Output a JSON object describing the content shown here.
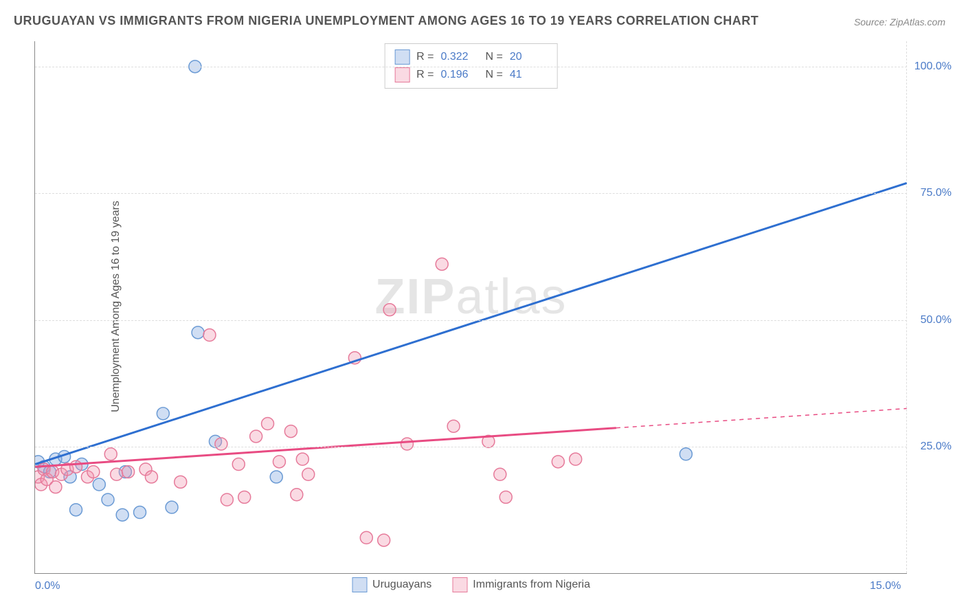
{
  "title": "URUGUAYAN VS IMMIGRANTS FROM NIGERIA UNEMPLOYMENT AMONG AGES 16 TO 19 YEARS CORRELATION CHART",
  "source": "Source: ZipAtlas.com",
  "y_axis_title": "Unemployment Among Ages 16 to 19 years",
  "watermark_a": "ZIP",
  "watermark_b": "atlas",
  "chart": {
    "type": "scatter",
    "xlim": [
      0,
      15
    ],
    "ylim": [
      0,
      105
    ],
    "x_ticks": [
      {
        "val": 0.0,
        "label": "0.0%"
      },
      {
        "val": 15.0,
        "label": "15.0%"
      }
    ],
    "y_ticks": [
      {
        "val": 25.0,
        "label": "25.0%"
      },
      {
        "val": 50.0,
        "label": "50.0%"
      },
      {
        "val": 75.0,
        "label": "75.0%"
      },
      {
        "val": 100.0,
        "label": "100.0%"
      }
    ],
    "grid_color": "#dddddd",
    "background_color": "#ffffff",
    "marker_radius": 9,
    "marker_stroke_width": 1.5,
    "line_width": 3,
    "series": [
      {
        "name": "Uruguayans",
        "color_fill": "rgba(120,160,220,0.35)",
        "color_stroke": "#6a9ad4",
        "line_color": "#2e6fd0",
        "R": "0.322",
        "N": "20",
        "trend": {
          "x1": 0.0,
          "y1": 21.5,
          "x2": 15.0,
          "y2": 77.0,
          "solid_until_x": 15.0
        },
        "points": [
          {
            "x": 0.05,
            "y": 22.0
          },
          {
            "x": 0.15,
            "y": 21.0
          },
          {
            "x": 0.25,
            "y": 20.0
          },
          {
            "x": 0.35,
            "y": 22.5
          },
          {
            "x": 0.5,
            "y": 23.0
          },
          {
            "x": 0.6,
            "y": 19.0
          },
          {
            "x": 0.7,
            "y": 12.5
          },
          {
            "x": 0.8,
            "y": 21.5
          },
          {
            "x": 1.1,
            "y": 17.5
          },
          {
            "x": 1.25,
            "y": 14.5
          },
          {
            "x": 1.5,
            "y": 11.5
          },
          {
            "x": 1.55,
            "y": 20.0
          },
          {
            "x": 1.8,
            "y": 12.0
          },
          {
            "x": 2.2,
            "y": 31.5
          },
          {
            "x": 2.35,
            "y": 13.0
          },
          {
            "x": 2.75,
            "y": 100.0
          },
          {
            "x": 2.8,
            "y": 47.5
          },
          {
            "x": 3.1,
            "y": 26.0
          },
          {
            "x": 4.15,
            "y": 19.0
          },
          {
            "x": 11.2,
            "y": 23.5
          }
        ]
      },
      {
        "name": "Immigrants from Nigeria",
        "color_fill": "rgba(240,150,175,0.35)",
        "color_stroke": "#e67a9a",
        "line_color": "#e84b82",
        "R": "0.196",
        "N": "41",
        "trend": {
          "x1": 0.0,
          "y1": 21.0,
          "x2": 15.0,
          "y2": 32.5,
          "solid_until_x": 10.0
        },
        "points": [
          {
            "x": 0.05,
            "y": 19.0
          },
          {
            "x": 0.1,
            "y": 17.5
          },
          {
            "x": 0.15,
            "y": 20.5
          },
          {
            "x": 0.2,
            "y": 18.5
          },
          {
            "x": 0.3,
            "y": 20.0
          },
          {
            "x": 0.35,
            "y": 17.0
          },
          {
            "x": 0.45,
            "y": 19.5
          },
          {
            "x": 0.55,
            "y": 20.5
          },
          {
            "x": 0.7,
            "y": 21.0
          },
          {
            "x": 0.9,
            "y": 19.0
          },
          {
            "x": 1.0,
            "y": 20.0
          },
          {
            "x": 1.3,
            "y": 23.5
          },
          {
            "x": 1.4,
            "y": 19.5
          },
          {
            "x": 1.6,
            "y": 20.0
          },
          {
            "x": 1.9,
            "y": 20.5
          },
          {
            "x": 2.0,
            "y": 19.0
          },
          {
            "x": 2.5,
            "y": 18.0
          },
          {
            "x": 3.0,
            "y": 47.0
          },
          {
            "x": 3.2,
            "y": 25.5
          },
          {
            "x": 3.3,
            "y": 14.5
          },
          {
            "x": 3.5,
            "y": 21.5
          },
          {
            "x": 3.6,
            "y": 15.0
          },
          {
            "x": 3.8,
            "y": 27.0
          },
          {
            "x": 4.0,
            "y": 29.5
          },
          {
            "x": 4.2,
            "y": 22.0
          },
          {
            "x": 4.4,
            "y": 28.0
          },
          {
            "x": 4.5,
            "y": 15.5
          },
          {
            "x": 4.6,
            "y": 22.5
          },
          {
            "x": 4.7,
            "y": 19.5
          },
          {
            "x": 5.5,
            "y": 42.5
          },
          {
            "x": 5.7,
            "y": 7.0
          },
          {
            "x": 6.0,
            "y": 6.5
          },
          {
            "x": 6.1,
            "y": 52.0
          },
          {
            "x": 6.4,
            "y": 25.5
          },
          {
            "x": 7.0,
            "y": 61.0
          },
          {
            "x": 7.2,
            "y": 29.0
          },
          {
            "x": 7.8,
            "y": 26.0
          },
          {
            "x": 8.0,
            "y": 19.5
          },
          {
            "x": 8.1,
            "y": 15.0
          },
          {
            "x": 9.0,
            "y": 22.0
          },
          {
            "x": 9.3,
            "y": 22.5
          }
        ]
      }
    ]
  }
}
